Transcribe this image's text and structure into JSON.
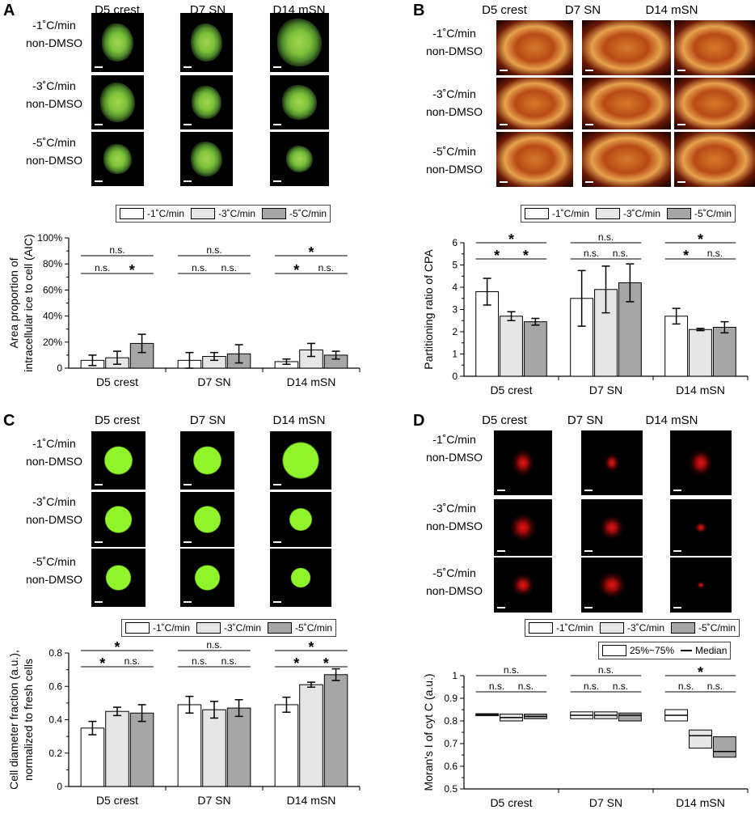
{
  "colors": {
    "bar1": "#ffffff",
    "bar2": "#e6e6e6",
    "bar3": "#a6a6a6"
  },
  "panels": [
    {
      "id": "A",
      "label": "A",
      "style": "green_blue",
      "cols": [
        "D5 crest",
        "D7 SN",
        "D14 mSN"
      ],
      "rows": [
        [
          "-1˚C/min",
          "non-DMSO"
        ],
        [
          "-3˚C/min",
          "non-DMSO"
        ],
        [
          "-5˚C/min",
          "non-DMSO"
        ]
      ],
      "legend": [
        "-1˚C/min",
        "-3˚C/min",
        "-5˚C/min"
      ]
    },
    {
      "id": "B",
      "label": "B",
      "style": "hot",
      "cols": [
        "D5 crest",
        "D7 SN",
        "D14 mSN"
      ],
      "rows": [
        [
          "-1˚C/min",
          "non-DMSO"
        ],
        [
          "-3˚C/min",
          "non-DMSO"
        ],
        [
          "-5˚C/min",
          "non-DMSO"
        ]
      ],
      "legend": [
        "-1˚C/min",
        "-3˚C/min",
        "-5˚C/min"
      ]
    },
    {
      "id": "C",
      "label": "C",
      "style": "green",
      "cols": [
        "D5 crest",
        "D7 SN",
        "D14 mSN"
      ],
      "rows": [
        [
          "-1˚C/min",
          "non-DMSO"
        ],
        [
          "-3˚C/min",
          "non-DMSO"
        ],
        [
          "-5˚C/min",
          "non-DMSO"
        ]
      ],
      "legend": [
        "-1˚C/min",
        "-3˚C/min",
        "-5˚C/min"
      ]
    },
    {
      "id": "D",
      "label": "D",
      "style": "red",
      "cols": [
        "D5 crest",
        "D7 SN",
        "D14 mSN"
      ],
      "rows": [
        [
          "-1˚C/min",
          "non-DMSO"
        ],
        [
          "-3˚C/min",
          "non-DMSO"
        ],
        [
          "-5˚C/min",
          "non-DMSO"
        ]
      ],
      "legend": [
        "-1˚C/min",
        "-3˚C/min",
        "-5˚C/min"
      ],
      "legend2": [
        "25%~75%",
        "Median"
      ]
    }
  ],
  "chart_data": [
    {
      "panel": "A",
      "type": "bar",
      "categories": [
        "D5 crest",
        "D7 SN",
        "D14 mSN"
      ],
      "ylabel_lines": [
        "Area proportion of",
        "intracellular ice to cell (AIC)"
      ],
      "ylim": [
        0,
        100
      ],
      "yticks": [
        0,
        20,
        40,
        60,
        80,
        100
      ],
      "ytick_labels": [
        "0",
        "20%",
        "40%",
        "60%",
        "80%",
        "100%"
      ],
      "series": [
        {
          "name": "-1˚C/min",
          "values": [
            6,
            6,
            5
          ],
          "errors": [
            4,
            6,
            2
          ]
        },
        {
          "name": "-3˚C/min",
          "values": [
            8,
            9,
            14
          ],
          "errors": [
            5,
            3,
            5
          ]
        },
        {
          "name": "-5˚C/min",
          "values": [
            19,
            11,
            10
          ],
          "errors": [
            7,
            7,
            3
          ]
        }
      ],
      "sig": [
        [
          "n.s.",
          "n.s.",
          "*",
          "n.s.",
          "n.s.",
          "n.s.",
          "*",
          "*",
          "n.s."
        ]
      ]
    },
    {
      "panel": "B",
      "type": "bar",
      "categories": [
        "D5 crest",
        "D7 SN",
        "D14 mSN"
      ],
      "ylabel_lines": [
        "Partitioning ratio of CPA"
      ],
      "ylim": [
        0,
        6
      ],
      "yticks": [
        0,
        1,
        2,
        3,
        4,
        5,
        6
      ],
      "ytick_labels": [
        "0",
        "1",
        "2",
        "3",
        "4",
        "5",
        "6"
      ],
      "series": [
        {
          "name": "-1˚C/min",
          "values": [
            3.8,
            3.5,
            2.7
          ],
          "errors": [
            0.6,
            1.25,
            0.35
          ]
        },
        {
          "name": "-3˚C/min",
          "values": [
            2.7,
            3.9,
            2.1
          ],
          "errors": [
            0.2,
            1.05,
            0.05
          ]
        },
        {
          "name": "-5˚C/min",
          "values": [
            2.45,
            4.2,
            2.2
          ],
          "errors": [
            0.15,
            0.85,
            0.25
          ]
        }
      ],
      "sig": [
        [
          "*",
          "*",
          "*",
          "n.s.",
          "n.s.",
          "n.s.",
          "*",
          "*",
          "n.s."
        ]
      ]
    },
    {
      "panel": "C",
      "type": "bar",
      "categories": [
        "D5 crest",
        "D7 SN",
        "D14 mSN"
      ],
      "ylabel_lines": [
        "Cell diameter fraction (a.u.),",
        "normalized to fresh cells"
      ],
      "ylim": [
        0,
        0.8
      ],
      "yticks": [
        0,
        0.2,
        0.4,
        0.6,
        0.8
      ],
      "ytick_labels": [
        "0",
        "0.2",
        "0.4",
        "0.6",
        "0.8"
      ],
      "series": [
        {
          "name": "-1˚C/min",
          "values": [
            0.35,
            0.49,
            0.49
          ],
          "errors": [
            0.04,
            0.05,
            0.045
          ]
        },
        {
          "name": "-3˚C/min",
          "values": [
            0.45,
            0.46,
            0.61
          ],
          "errors": [
            0.025,
            0.05,
            0.015
          ]
        },
        {
          "name": "-5˚C/min",
          "values": [
            0.44,
            0.47,
            0.67
          ],
          "errors": [
            0.05,
            0.05,
            0.035
          ]
        }
      ],
      "sig": [
        [
          "*",
          "*",
          "n.s.",
          "n.s.",
          "n.s.",
          "n.s.",
          "*",
          "*",
          "*"
        ]
      ]
    },
    {
      "panel": "D",
      "type": "box",
      "categories": [
        "D5 crest",
        "D7 SN",
        "D14 mSN"
      ],
      "ylabel_lines": [
        "Moran's I of cyt C (a.u.)"
      ],
      "ylim": [
        0.5,
        1.0
      ],
      "yticks": [
        0.5,
        0.6,
        0.7,
        0.8,
        0.9,
        1.0
      ],
      "ytick_labels": [
        "0.5",
        "0.6",
        "0.7",
        "0.8",
        "0.9",
        "1"
      ],
      "series": [
        {
          "name": "-1˚C/min",
          "q1": [
            0.823,
            0.81,
            0.8
          ],
          "median": [
            0.828,
            0.825,
            0.825
          ],
          "q3": [
            0.832,
            0.84,
            0.85
          ]
        },
        {
          "name": "-3˚C/min",
          "q1": [
            0.8,
            0.81,
            0.68
          ],
          "median": [
            0.815,
            0.825,
            0.735
          ],
          "q3": [
            0.83,
            0.84,
            0.76
          ]
        },
        {
          "name": "-5˚C/min",
          "q1": [
            0.81,
            0.8,
            0.64
          ],
          "median": [
            0.82,
            0.825,
            0.665
          ],
          "q3": [
            0.83,
            0.835,
            0.73
          ]
        }
      ],
      "sig": [
        [
          "n.s.",
          "n.s.",
          "n.s.",
          "n.s.",
          "n.s.",
          "n.s.",
          "*",
          "n.s.",
          "n.s."
        ]
      ]
    }
  ]
}
